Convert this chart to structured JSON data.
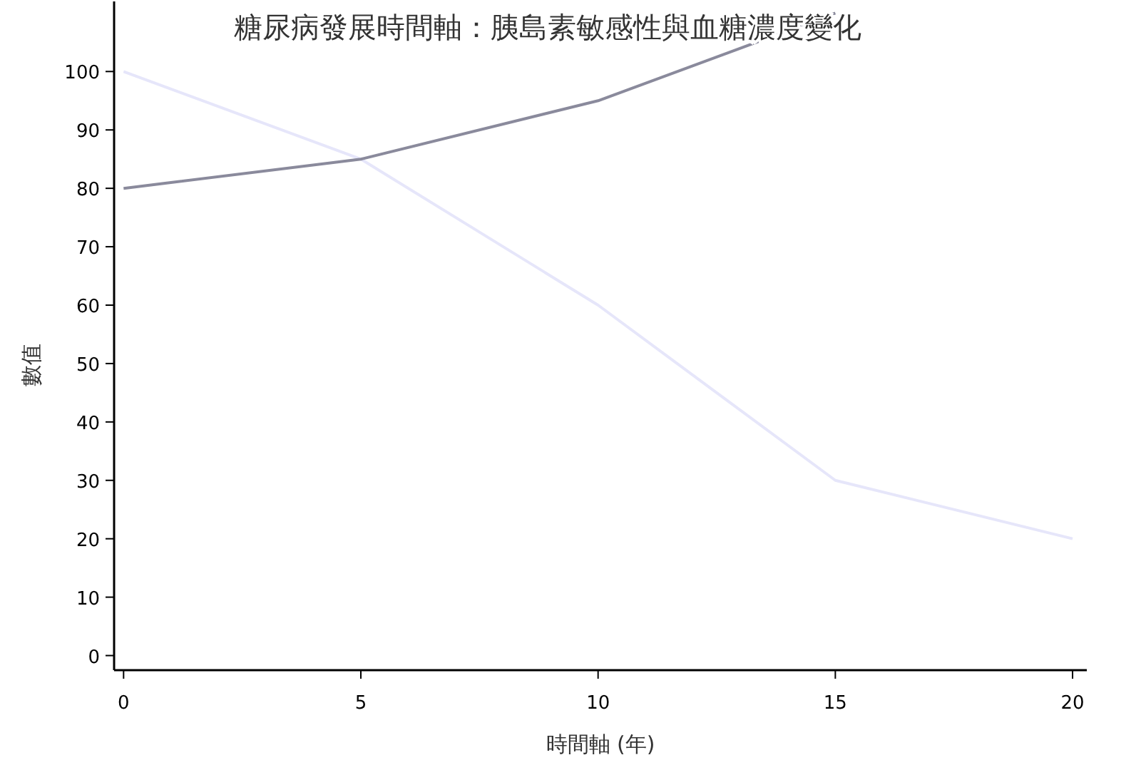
{
  "chart_data": {
    "type": "line",
    "title": "糖尿病發展時間軸：胰島素敏感性與血糖濃度變化",
    "xlabel": "時間軸 (年)",
    "ylabel": "數值",
    "x": [
      0,
      5,
      10,
      15,
      20
    ],
    "series": [
      {
        "color": "#e6e6fa",
        "values": [
          100,
          85,
          60,
          30,
          20
        ]
      },
      {
        "color": "#8a8a9c",
        "values": [
          80,
          85,
          95,
          110,
          null
        ]
      }
    ],
    "xlim": [
      -0.2,
      20.3
    ],
    "xticks": [
      0,
      5,
      10,
      15,
      20
    ],
    "ylim": [
      -2.5,
      112
    ],
    "yticks": [
      0,
      10,
      20,
      30,
      40,
      50,
      60,
      70,
      80,
      90,
      100
    ],
    "grid": false,
    "marker": "none",
    "line_style": "solid"
  }
}
